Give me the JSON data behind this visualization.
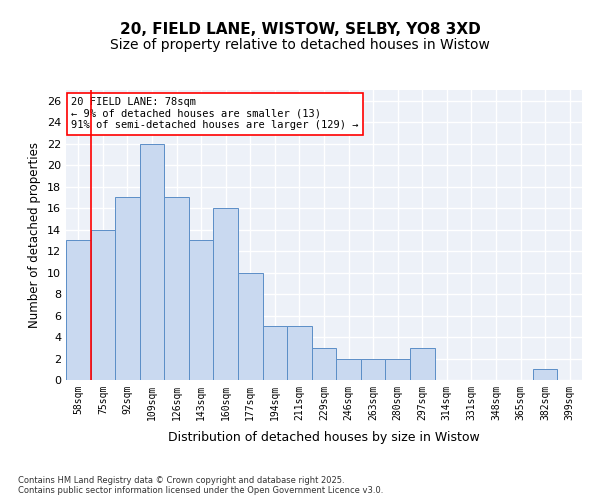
{
  "title_line1": "20, FIELD LANE, WISTOW, SELBY, YO8 3XD",
  "title_line2": "Size of property relative to detached houses in Wistow",
  "xlabel": "Distribution of detached houses by size in Wistow",
  "ylabel": "Number of detached properties",
  "bins": [
    "58sqm",
    "75sqm",
    "92sqm",
    "109sqm",
    "126sqm",
    "143sqm",
    "160sqm",
    "177sqm",
    "194sqm",
    "211sqm",
    "229sqm",
    "246sqm",
    "263sqm",
    "280sqm",
    "297sqm",
    "314sqm",
    "331sqm",
    "348sqm",
    "365sqm",
    "382sqm",
    "399sqm"
  ],
  "values": [
    13,
    14,
    17,
    22,
    17,
    13,
    16,
    10,
    5,
    5,
    3,
    2,
    2,
    2,
    3,
    0,
    0,
    0,
    0,
    1,
    0
  ],
  "bar_color": "#c9d9f0",
  "bar_edge_color": "#5b8ec7",
  "redline_x": 0.5,
  "annotation_text": "20 FIELD LANE: 78sqm\n← 9% of detached houses are smaller (13)\n91% of semi-detached houses are larger (129) →",
  "ylim": [
    0,
    27
  ],
  "yticks": [
    0,
    2,
    4,
    6,
    8,
    10,
    12,
    14,
    16,
    18,
    20,
    22,
    24,
    26
  ],
  "background_color": "#edf1f8",
  "grid_color": "#ffffff",
  "footer_text": "Contains HM Land Registry data © Crown copyright and database right 2025.\nContains public sector information licensed under the Open Government Licence v3.0.",
  "title_fontsize": 11,
  "subtitle_fontsize": 10,
  "label_fontsize": 8.5,
  "tick_fontsize": 7,
  "annotation_fontsize": 7.5
}
